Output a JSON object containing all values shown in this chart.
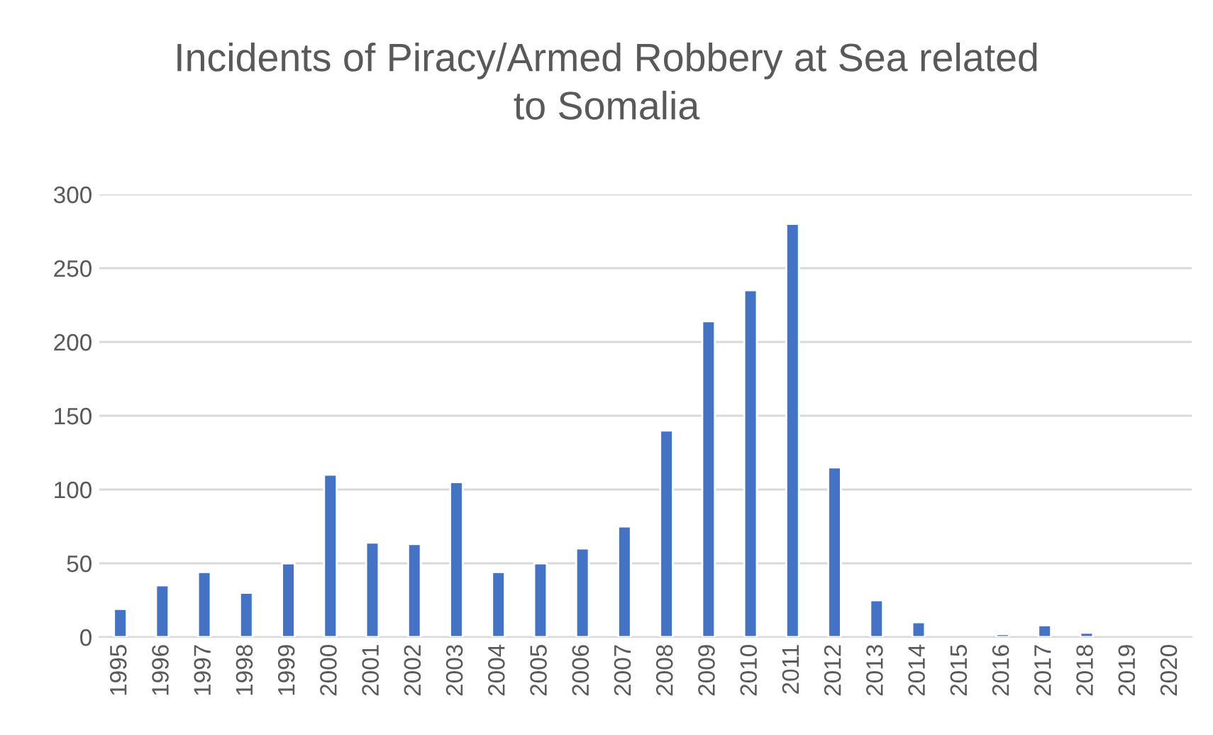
{
  "chart_data": {
    "type": "bar",
    "title": "Incidents of Piracy/Armed Robbery at Sea related\nto Somalia",
    "categories": [
      "1995",
      "1996",
      "1997",
      "1998",
      "1999",
      "2000",
      "2001",
      "2002",
      "2003",
      "2004",
      "2005",
      "2006",
      "2007",
      "2008",
      "2009",
      "2010",
      "2011",
      "2012",
      "2013",
      "2014",
      "2015",
      "2016",
      "2017",
      "2018",
      "2019",
      "2020"
    ],
    "values": [
      19,
      35,
      44,
      30,
      50,
      110,
      64,
      63,
      105,
      44,
      50,
      60,
      75,
      140,
      214,
      235,
      280,
      115,
      25,
      10,
      null,
      2,
      8,
      3,
      null,
      null
    ],
    "color": "#4472c4",
    "ylim": [
      0,
      300
    ],
    "yticks": [
      0,
      50,
      100,
      150,
      200,
      250,
      300
    ],
    "grid": "y",
    "legend": false
  }
}
